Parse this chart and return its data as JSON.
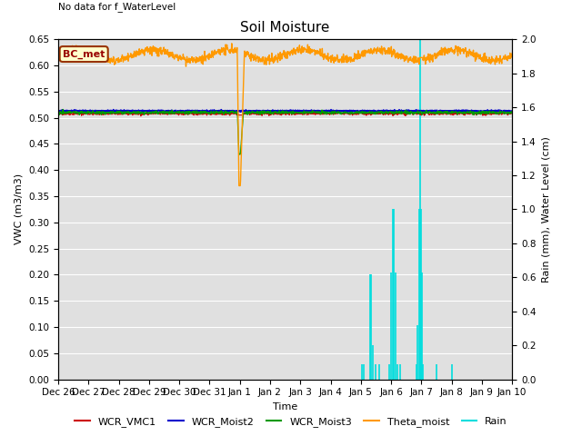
{
  "title": "Soil Moisture",
  "top_left_text": "No data for f_WaterLevel",
  "station_label": "BC_met",
  "ylabel_left": "VWC (m3/m3)",
  "ylabel_right": "Rain (mm), Water Level (cm)",
  "xlabel": "Time",
  "ylim_left": [
    0.0,
    0.65
  ],
  "ylim_right": [
    0.0,
    2.0
  ],
  "yticks_left": [
    0.0,
    0.05,
    0.1,
    0.15,
    0.2,
    0.25,
    0.3,
    0.35,
    0.4,
    0.45,
    0.5,
    0.55,
    0.6,
    0.65
  ],
  "yticks_right": [
    0.0,
    0.2,
    0.4,
    0.6,
    0.8,
    1.0,
    1.2,
    1.4,
    1.6,
    1.8,
    2.0
  ],
  "colors": {
    "WCR_VMC1": "#cc0000",
    "WCR_Moist2": "#0000cc",
    "WCR_Moist3": "#009900",
    "Theta_moist": "#ff9900",
    "Rain": "#00dddd"
  },
  "background_color": "#e0e0e0",
  "fig_background": "#ffffff",
  "title_fontsize": 11,
  "label_fontsize": 8,
  "tick_fontsize": 7.5
}
